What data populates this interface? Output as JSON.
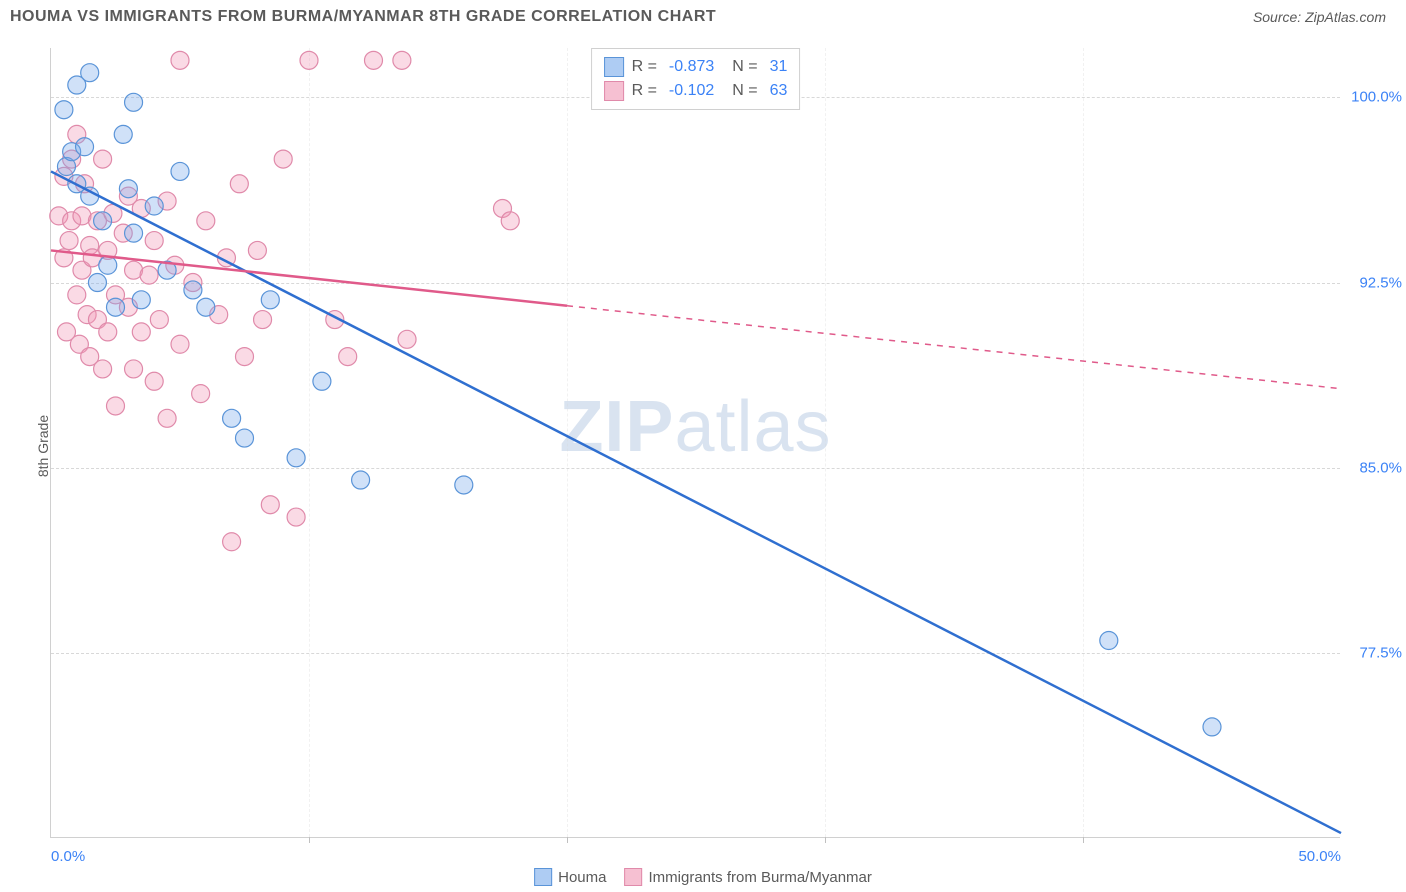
{
  "header": {
    "title": "HOUMA VS IMMIGRANTS FROM BURMA/MYANMAR 8TH GRADE CORRELATION CHART",
    "source": "Source: ZipAtlas.com"
  },
  "chart": {
    "type": "scatter",
    "y_label": "8th Grade",
    "watermark": "ZIPatlas",
    "xlim": [
      0,
      50
    ],
    "ylim": [
      70,
      102
    ],
    "x_ticks": [
      {
        "pos": 0,
        "label": "0.0%"
      },
      {
        "pos": 10,
        "label": ""
      },
      {
        "pos": 20,
        "label": ""
      },
      {
        "pos": 30,
        "label": ""
      },
      {
        "pos": 40,
        "label": ""
      },
      {
        "pos": 50,
        "label": "50.0%"
      }
    ],
    "y_ticks": [
      {
        "pos": 77.5,
        "label": "77.5%"
      },
      {
        "pos": 85.0,
        "label": "85.0%"
      },
      {
        "pos": 92.5,
        "label": "92.5%"
      },
      {
        "pos": 100.0,
        "label": "100.0%"
      }
    ],
    "background_color": "#ffffff",
    "grid_color": "#d8d8d8",
    "marker_radius": 9,
    "marker_stroke_width": 1.2,
    "series": [
      {
        "name": "Houma",
        "fill": "rgba(120,170,235,0.35)",
        "stroke": "#5a94d8",
        "line_color": "#2f6fd0",
        "line_width": 2.5,
        "r": -0.873,
        "n": 31,
        "trend": {
          "x1": 0,
          "y1": 97.0,
          "x2": 50,
          "y2": 70.2,
          "solid_until_x": 50
        },
        "points": [
          [
            0.5,
            99.5
          ],
          [
            0.6,
            97.2
          ],
          [
            0.8,
            97.8
          ],
          [
            1.0,
            96.5
          ],
          [
            1.0,
            100.5
          ],
          [
            1.3,
            98.0
          ],
          [
            1.5,
            101.0
          ],
          [
            1.5,
            96.0
          ],
          [
            1.8,
            92.5
          ],
          [
            2.0,
            95.0
          ],
          [
            2.2,
            93.2
          ],
          [
            2.5,
            91.5
          ],
          [
            2.8,
            98.5
          ],
          [
            3.0,
            96.3
          ],
          [
            3.2,
            94.5
          ],
          [
            3.2,
            99.8
          ],
          [
            3.5,
            91.8
          ],
          [
            4.0,
            95.6
          ],
          [
            4.5,
            93.0
          ],
          [
            5.0,
            97.0
          ],
          [
            5.5,
            92.2
          ],
          [
            6.0,
            91.5
          ],
          [
            7.0,
            87.0
          ],
          [
            7.5,
            86.2
          ],
          [
            8.5,
            91.8
          ],
          [
            9.5,
            85.4
          ],
          [
            10.5,
            88.5
          ],
          [
            12.0,
            84.5
          ],
          [
            16.0,
            84.3
          ],
          [
            41.0,
            78.0
          ],
          [
            45.0,
            74.5
          ]
        ]
      },
      {
        "name": "Immigrants from Burma/Myanmar",
        "fill": "rgba(240,150,180,0.35)",
        "stroke": "#e08aaa",
        "line_color": "#e05a8a",
        "line_width": 2.5,
        "r": -0.102,
        "n": 63,
        "trend": {
          "x1": 0,
          "y1": 93.8,
          "x2": 50,
          "y2": 88.2,
          "solid_until_x": 20
        },
        "points": [
          [
            0.3,
            95.2
          ],
          [
            0.5,
            93.5
          ],
          [
            0.5,
            96.8
          ],
          [
            0.6,
            90.5
          ],
          [
            0.7,
            94.2
          ],
          [
            0.8,
            95.0
          ],
          [
            0.8,
            97.5
          ],
          [
            1.0,
            92.0
          ],
          [
            1.0,
            98.5
          ],
          [
            1.1,
            90.0
          ],
          [
            1.2,
            93.0
          ],
          [
            1.2,
            95.2
          ],
          [
            1.3,
            96.5
          ],
          [
            1.4,
            91.2
          ],
          [
            1.5,
            94.0
          ],
          [
            1.5,
            89.5
          ],
          [
            1.6,
            93.5
          ],
          [
            1.8,
            95.0
          ],
          [
            1.8,
            91.0
          ],
          [
            2.0,
            97.5
          ],
          [
            2.0,
            89.0
          ],
          [
            2.2,
            93.8
          ],
          [
            2.2,
            90.5
          ],
          [
            2.4,
            95.3
          ],
          [
            2.5,
            92.0
          ],
          [
            2.5,
            87.5
          ],
          [
            2.8,
            94.5
          ],
          [
            3.0,
            91.5
          ],
          [
            3.0,
            96.0
          ],
          [
            3.2,
            93.0
          ],
          [
            3.2,
            89.0
          ],
          [
            3.5,
            95.5
          ],
          [
            3.5,
            90.5
          ],
          [
            3.8,
            92.8
          ],
          [
            4.0,
            94.2
          ],
          [
            4.0,
            88.5
          ],
          [
            4.2,
            91.0
          ],
          [
            4.5,
            95.8
          ],
          [
            4.5,
            87.0
          ],
          [
            4.8,
            93.2
          ],
          [
            5.0,
            90.0
          ],
          [
            5.0,
            101.5
          ],
          [
            5.5,
            92.5
          ],
          [
            5.8,
            88.0
          ],
          [
            6.0,
            95.0
          ],
          [
            6.5,
            91.2
          ],
          [
            6.8,
            93.5
          ],
          [
            7.0,
            82.0
          ],
          [
            7.3,
            96.5
          ],
          [
            7.5,
            89.5
          ],
          [
            8.0,
            93.8
          ],
          [
            8.2,
            91.0
          ],
          [
            8.5,
            83.5
          ],
          [
            9.0,
            97.5
          ],
          [
            9.5,
            83.0
          ],
          [
            10.0,
            101.5
          ],
          [
            11.0,
            91.0
          ],
          [
            11.5,
            89.5
          ],
          [
            12.5,
            101.5
          ],
          [
            13.6,
            101.5
          ],
          [
            13.8,
            90.2
          ],
          [
            17.5,
            95.5
          ],
          [
            17.8,
            95.0
          ]
        ]
      }
    ],
    "legend_top": [
      {
        "swatch_fill": "rgba(120,170,235,0.6)",
        "swatch_stroke": "#5a94d8",
        "r_label": "R =",
        "r_val": "-0.873",
        "n_label": "N =",
        "n_val": "31"
      },
      {
        "swatch_fill": "rgba(240,150,180,0.6)",
        "swatch_stroke": "#e08aaa",
        "r_label": "R =",
        "r_val": "-0.102",
        "n_label": "N =",
        "n_val": "63"
      }
    ],
    "legend_bottom": [
      {
        "swatch_fill": "rgba(120,170,235,0.6)",
        "swatch_stroke": "#5a94d8",
        "label": "Houma"
      },
      {
        "swatch_fill": "rgba(240,150,180,0.6)",
        "swatch_stroke": "#e08aaa",
        "label": "Immigrants from Burma/Myanmar"
      }
    ]
  }
}
